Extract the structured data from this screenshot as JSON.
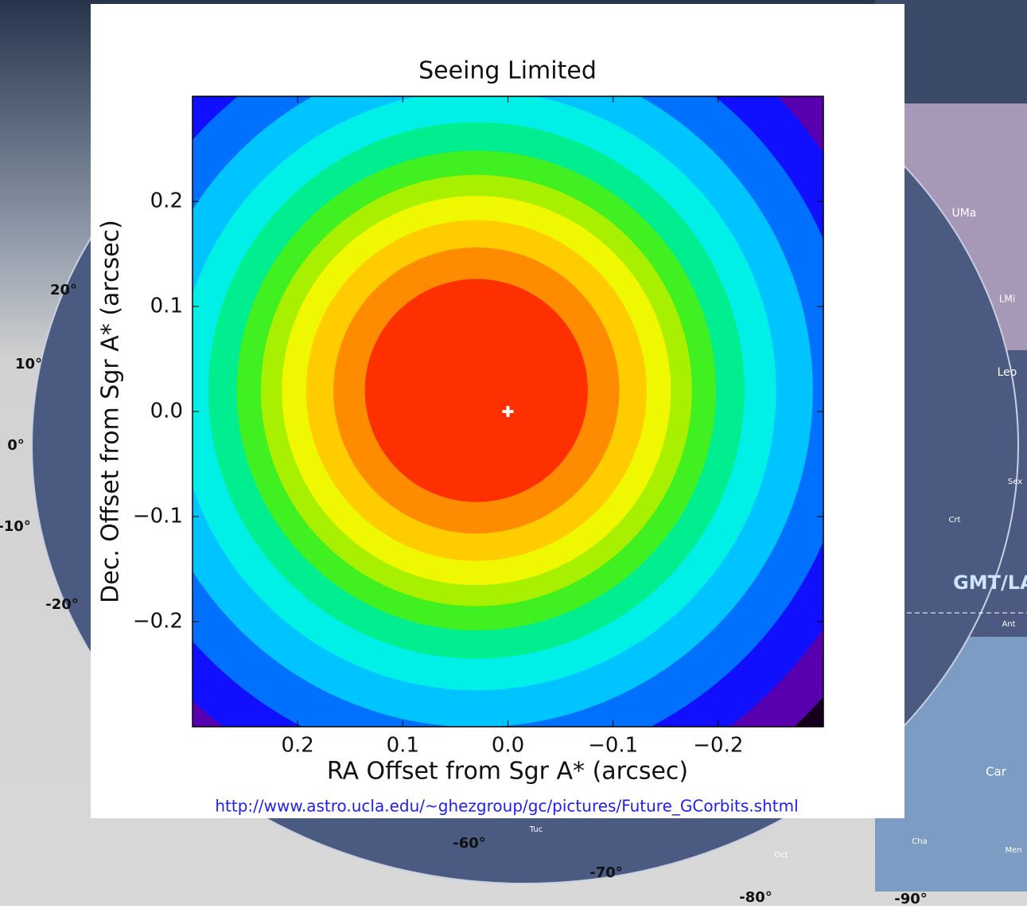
{
  "background": {
    "labels": [
      "20°",
      "10°",
      "0°",
      "-10°",
      "-20°",
      "-60°",
      "-70°",
      "-80°",
      "-90°",
      "UMa",
      "LMi",
      "Leo",
      "Sex",
      "Crt",
      "Ant",
      "Car",
      "Tuc",
      "Oct",
      "Cha",
      "Men",
      "GMT/LAS"
    ]
  },
  "chart_data": {
    "type": "heatmap",
    "title": "Seeing Limited",
    "x_label": "RA Offset from Sgr A* (arcsec)",
    "y_label": "Dec. Offset from Sgr A* (arcsec)",
    "xlim": [
      0.3,
      -0.3
    ],
    "ylim": [
      -0.3,
      0.3
    ],
    "xticks": [
      0.2,
      0.1,
      {
        "value": 0,
        "label": "0.0"
      },
      {
        "value": -0.1,
        "label": "−0.1"
      },
      {
        "value": -0.2,
        "label": "−0.2"
      }
    ],
    "yticks": [
      {
        "value": -0.2,
        "label": "−0.2"
      },
      {
        "value": -0.1,
        "label": "−0.1"
      },
      {
        "value": 0,
        "label": "0.0"
      },
      0.1,
      0.2
    ],
    "center": {
      "x": 0.03,
      "y": 0.02
    },
    "rings": [
      {
        "radius": 0.47,
        "color": "#14001c"
      },
      {
        "radius": 0.44,
        "color": "#5800b0"
      },
      {
        "radius": 0.4,
        "color": "#1010ff"
      },
      {
        "radius": 0.36,
        "color": "#0070ff"
      },
      {
        "radius": 0.32,
        "color": "#00c4ff"
      },
      {
        "radius": 0.285,
        "color": "#00f0e8"
      },
      {
        "radius": 0.255,
        "color": "#00ee90"
      },
      {
        "radius": 0.228,
        "color": "#40f020"
      },
      {
        "radius": 0.205,
        "color": "#a8f000"
      },
      {
        "radius": 0.185,
        "color": "#f0f800"
      },
      {
        "radius": 0.162,
        "color": "#ffcc00"
      },
      {
        "radius": 0.136,
        "color": "#ff8c00"
      },
      {
        "radius": 0.106,
        "color": "#ff3000"
      }
    ],
    "marker": {
      "x": 0,
      "y": 0,
      "color": "#ffffff"
    },
    "source": "http://www.astro.ucla.edu/~ghezgroup/gc/pictures/Future_GCorbits.shtml"
  }
}
